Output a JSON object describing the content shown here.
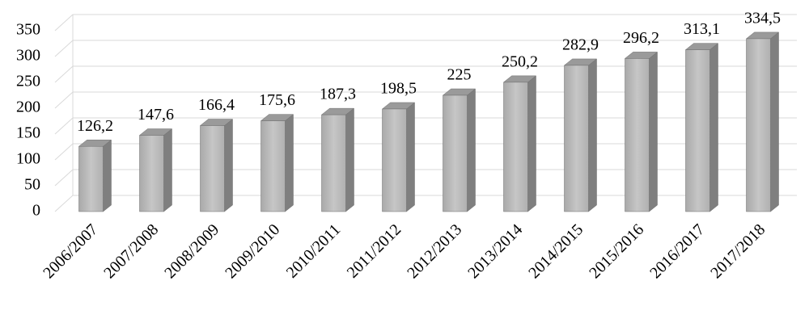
{
  "chart_data": {
    "type": "bar3d",
    "categories": [
      "2006/2007",
      "2007/2008",
      "2008/2009",
      "2009/2010",
      "2010/2011",
      "2011/2012",
      "2012/2013",
      "2013/2014",
      "2014/2015",
      "2015/2016",
      "2016/2017",
      "2017/2018"
    ],
    "values": [
      126.2,
      147.6,
      166.4,
      175.6,
      187.3,
      198.5,
      225,
      250.2,
      282.9,
      296.2,
      313.1,
      334.5
    ],
    "value_labels": [
      "126,2",
      "147,6",
      "166,4",
      "175,6",
      "187,3",
      "198,5",
      "225",
      "250,2",
      "282,9",
      "296,2",
      "313,1",
      "334,5"
    ],
    "color": "#b4b4b4",
    "ylim": [
      0,
      350
    ],
    "yticks": [
      0,
      50,
      100,
      150,
      200,
      250,
      300,
      350
    ],
    "grid": true
  }
}
